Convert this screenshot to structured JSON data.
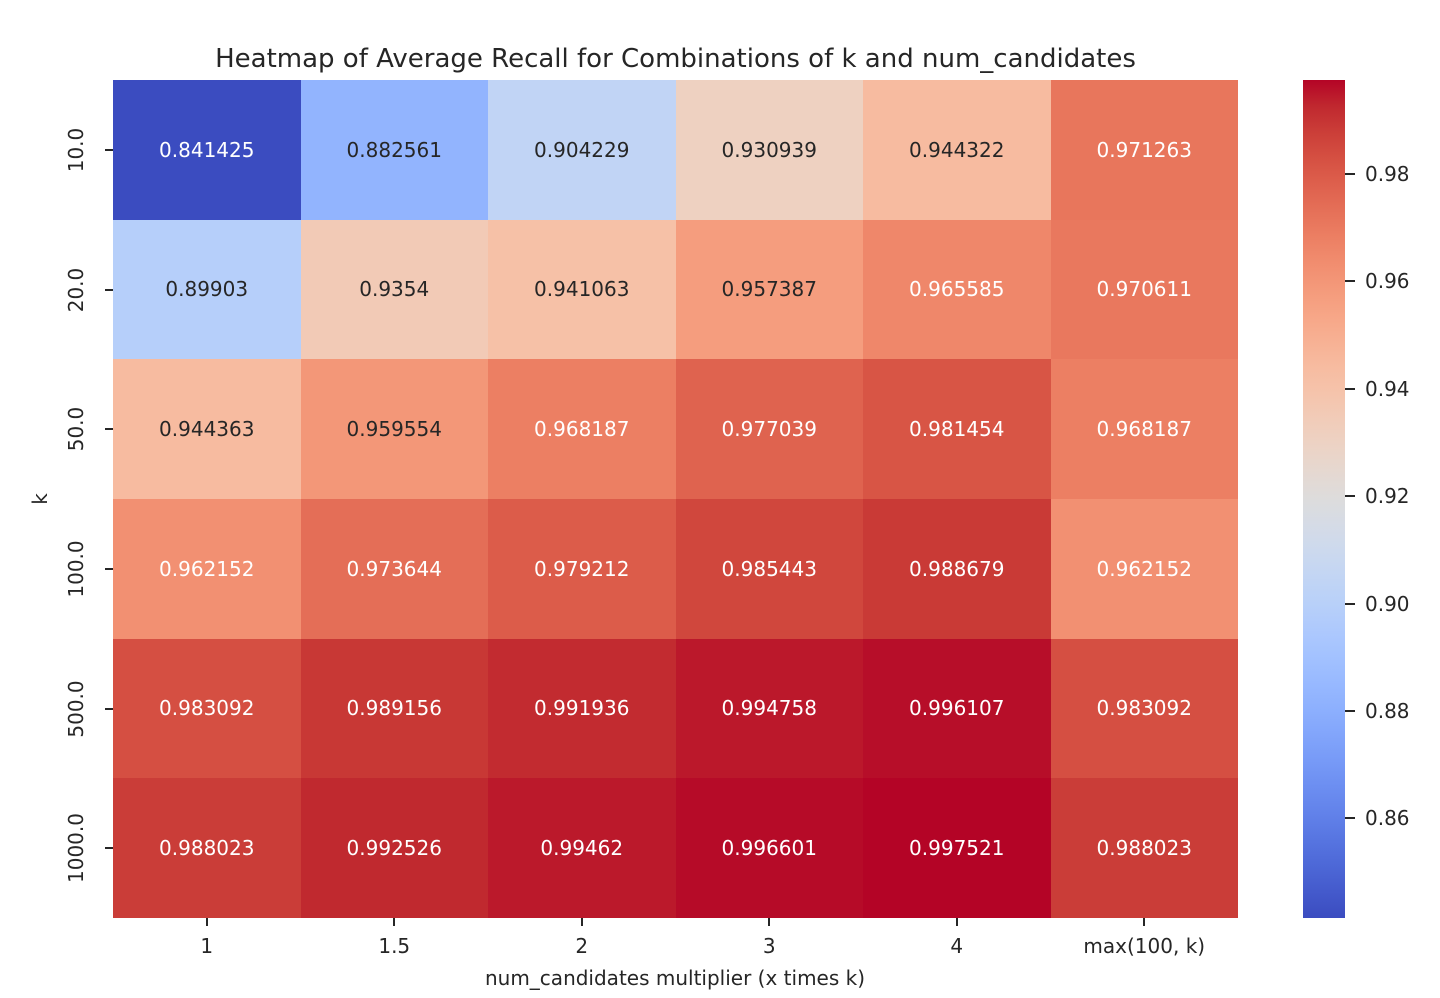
{
  "chart_data": {
    "type": "heatmap",
    "title": "Heatmap of Average Recall for Combinations of k and num_candidates",
    "xlabel": "num_candidates multiplier (x times k)",
    "ylabel": "k",
    "x_tick_labels": [
      "1",
      "1.5",
      "2",
      "3",
      "4",
      "max(100, k)"
    ],
    "y_tick_labels": [
      "10.0",
      "20.0",
      "50.0",
      "100.0",
      "500.0",
      "1000.0"
    ],
    "values": [
      [
        0.841425,
        0.882561,
        0.904229,
        0.930939,
        0.944322,
        0.971263
      ],
      [
        0.89903,
        0.9354,
        0.941063,
        0.957387,
        0.965585,
        0.970611
      ],
      [
        0.944363,
        0.959554,
        0.968187,
        0.977039,
        0.981454,
        0.968187
      ],
      [
        0.962152,
        0.973644,
        0.979212,
        0.985443,
        0.988679,
        0.962152
      ],
      [
        0.983092,
        0.989156,
        0.991936,
        0.994758,
        0.996107,
        0.983092
      ],
      [
        0.988023,
        0.992526,
        0.99462,
        0.996601,
        0.997521,
        0.988023
      ]
    ],
    "cell_labels": [
      [
        "0.841425",
        "0.882561",
        "0.904229",
        "0.930939",
        "0.944322",
        "0.971263"
      ],
      [
        "0.89903",
        "0.9354",
        "0.941063",
        "0.957387",
        "0.965585",
        "0.970611"
      ],
      [
        "0.944363",
        "0.959554",
        "0.968187",
        "0.977039",
        "0.981454",
        "0.968187"
      ],
      [
        "0.962152",
        "0.973644",
        "0.979212",
        "0.985443",
        "0.988679",
        "0.962152"
      ],
      [
        "0.983092",
        "0.989156",
        "0.991936",
        "0.994758",
        "0.996107",
        "0.983092"
      ],
      [
        "0.988023",
        "0.992526",
        "0.99462",
        "0.996601",
        "0.997521",
        "0.988023"
      ]
    ],
    "vmin": 0.841425,
    "vmax": 0.997521,
    "colormap": {
      "name": "coolwarm",
      "stops": [
        "#3b4cc0",
        "#445acc",
        "#4d68d7",
        "#5775e1",
        "#6282ea",
        "#6c8ef1",
        "#779af7",
        "#82a5fb",
        "#8db0fe",
        "#98b9ff",
        "#a3c2ff",
        "#aec9fd",
        "#b8d0f9",
        "#c2d5f4",
        "#ccd9ee",
        "#d5dbe6",
        "#dddcdc",
        "#e5d8d1",
        "#ecd3c5",
        "#f1ccb9",
        "#f5c4ac",
        "#f7bca1",
        "#f7b194",
        "#f7a687",
        "#f49a7b",
        "#f18d6f",
        "#ec7f63",
        "#e57058",
        "#de604d",
        "#d55042",
        "#cb3e38",
        "#c0282f",
        "#b40426"
      ]
    },
    "colorbar": {
      "tick_labels": [
        "0.98",
        "0.96",
        "0.94",
        "0.92",
        "0.90",
        "0.88",
        "0.86"
      ],
      "tick_values": [
        0.98,
        0.96,
        0.94,
        0.92,
        0.9,
        0.88,
        0.86
      ]
    },
    "annotation_colors": {
      "on_dark": "#ffffff",
      "on_light": "#262626"
    },
    "axis_text_color": "#262626",
    "background_color": "#ffffff",
    "grid": false,
    "legend_position": "colorbar-right"
  }
}
